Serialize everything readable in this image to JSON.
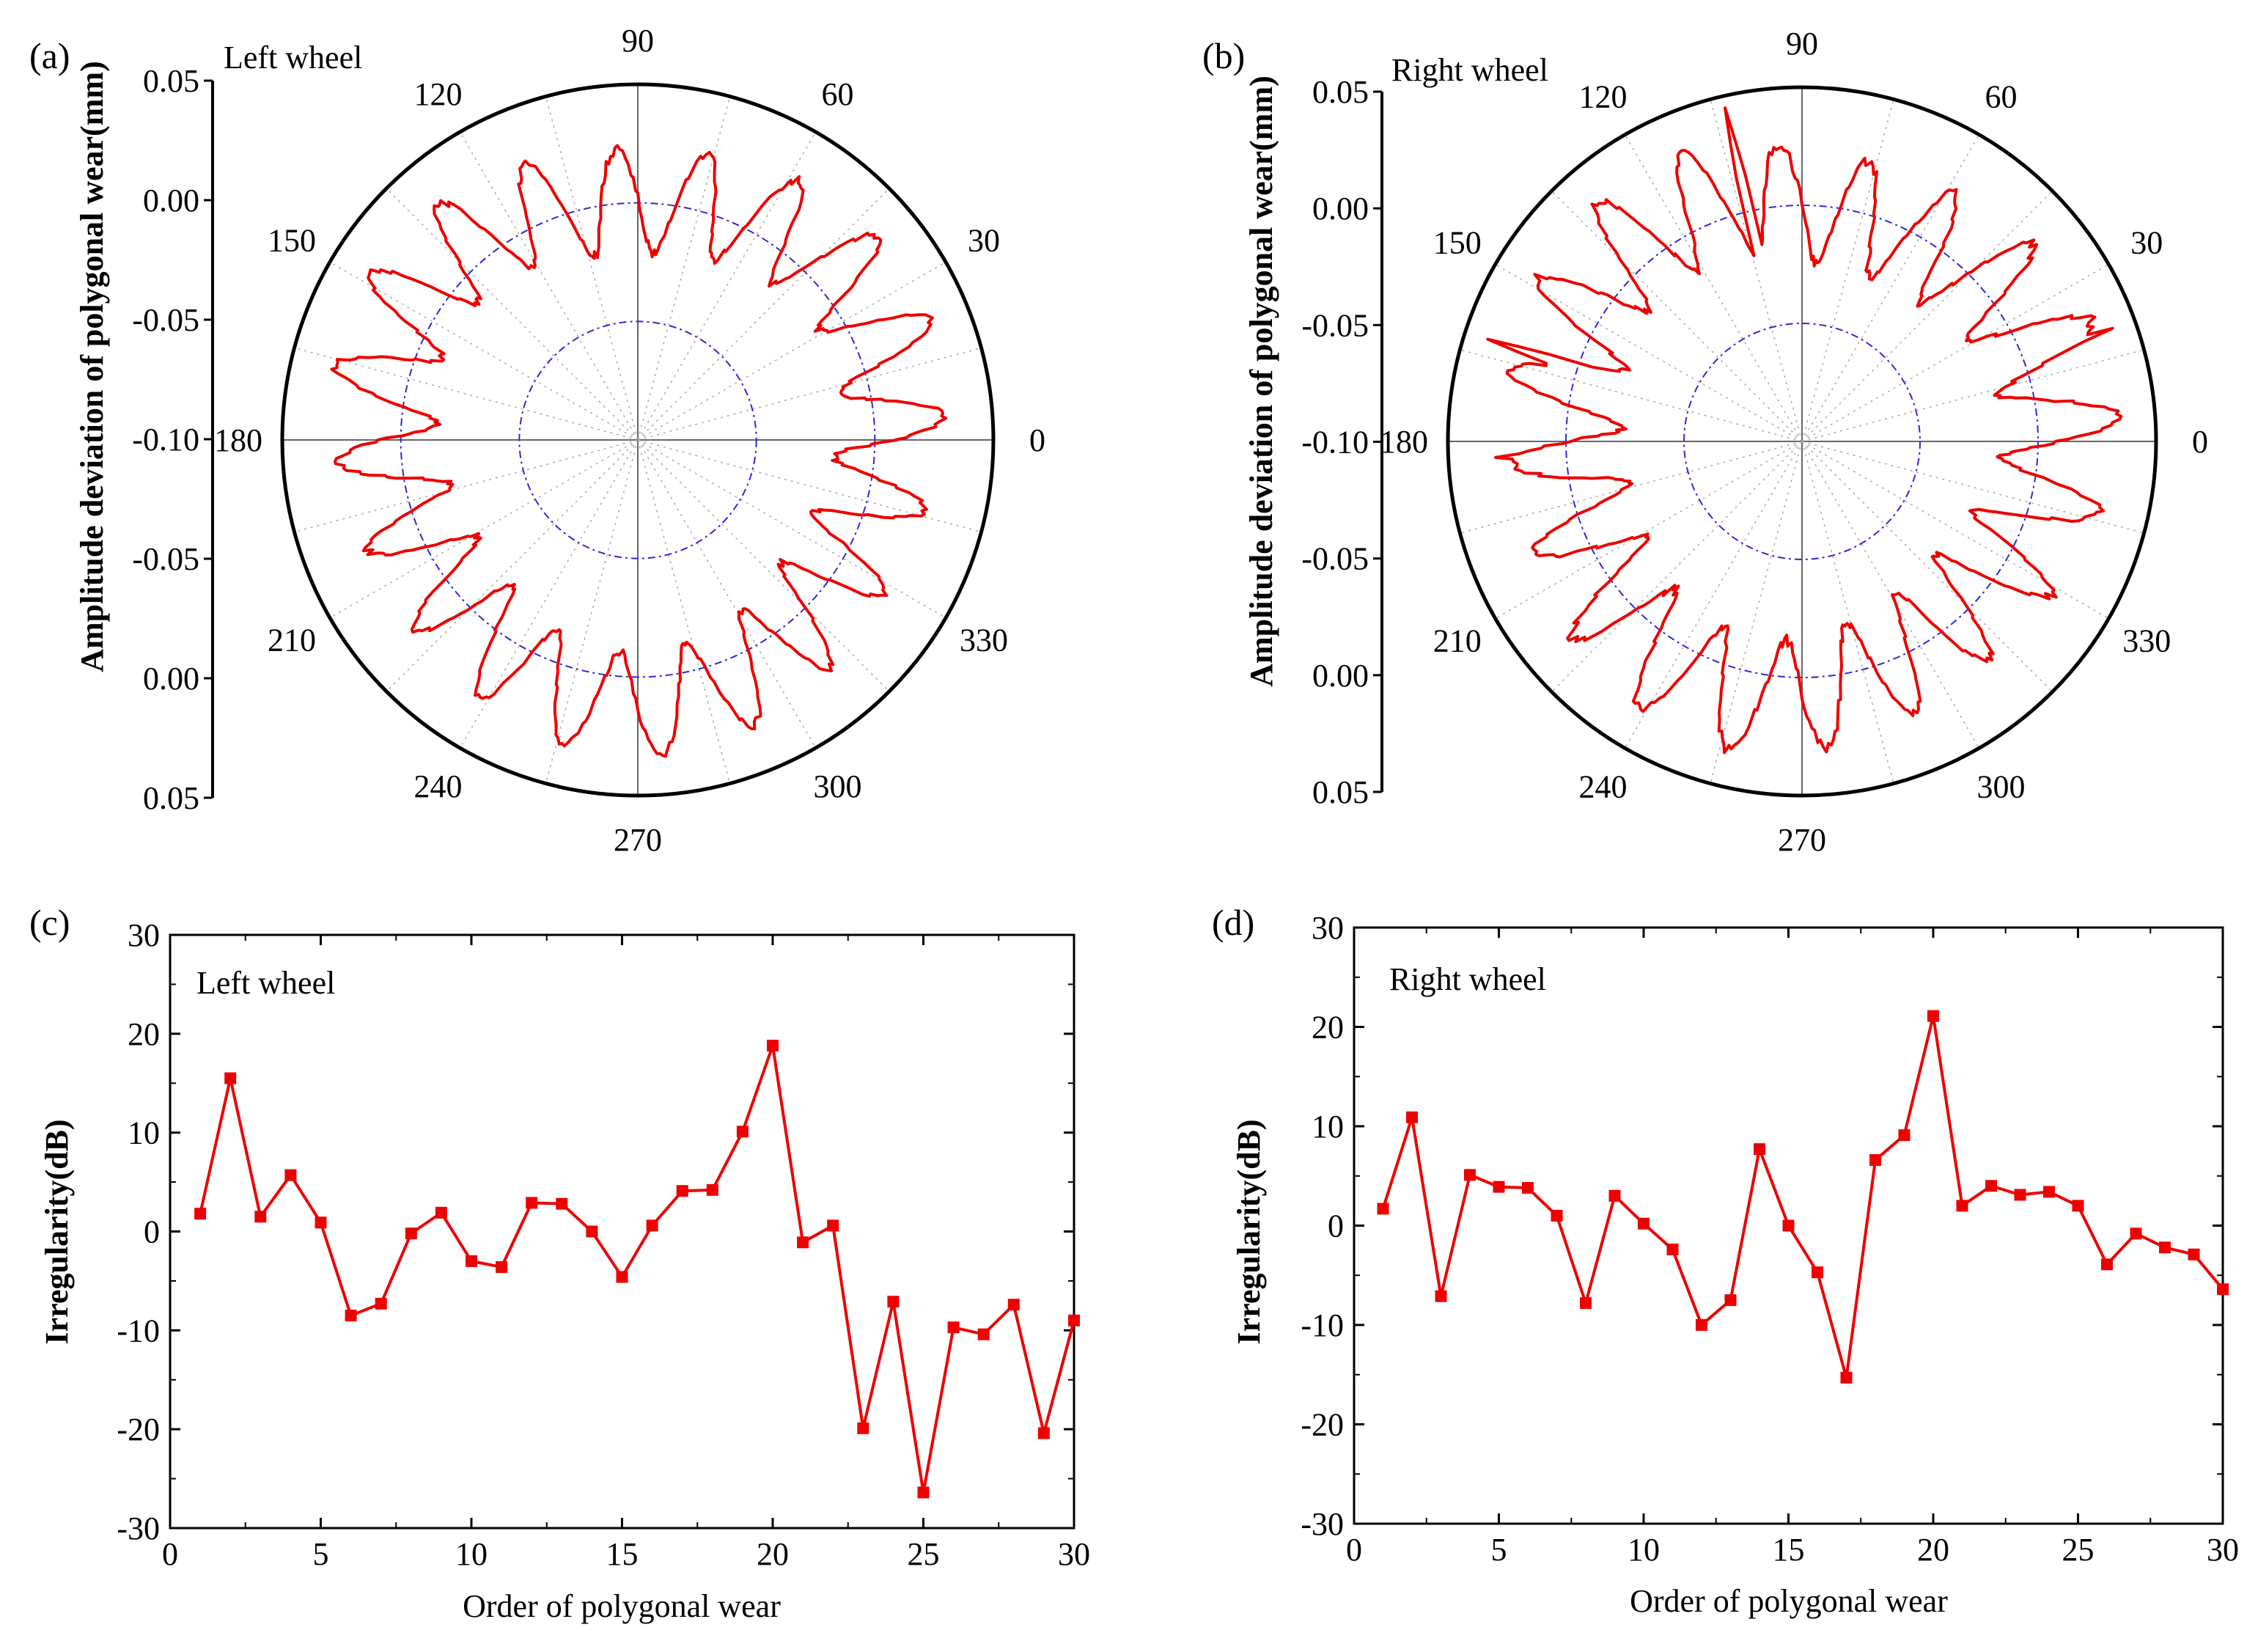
{
  "figure": {
    "panels": [
      "(a)",
      "(b)",
      "(c)",
      "(d)"
    ]
  },
  "colors": {
    "series": "#ee0000",
    "inner_rings": "#2a2ad8",
    "axes": "#000000",
    "spokes": "#aaaaaa"
  },
  "chart_data": [
    {
      "id": "a",
      "type": "polar",
      "panel": "(a)",
      "label": "Left wheel",
      "ylabel": "Amplitude deviation of polygonal wear(mm)",
      "radial_tick_labels": [
        "0.05",
        "0.00",
        "-0.05",
        "-0.10",
        "-0.05",
        "0.00",
        "0.05"
      ],
      "angle_labels": [
        "0",
        "30",
        "60",
        "90",
        "120",
        "150",
        "180",
        "210",
        "240",
        "270",
        "300",
        "330"
      ],
      "radial_range": [
        -0.1,
        0.05
      ],
      "rings": [
        -0.05,
        0.0
      ],
      "order": 20,
      "amplitude": 0.022,
      "offset": 0.006,
      "phase_deg": 5,
      "noise": 0.004
    },
    {
      "id": "b",
      "type": "polar",
      "panel": "(b)",
      "label": "Right wheel",
      "ylabel": "Amplitude deviation of polygonal wear(mm)",
      "radial_tick_labels": [
        "0.05",
        "0.00",
        "-0.05",
        "-0.10",
        "-0.05",
        "0.00",
        "0.05"
      ],
      "angle_labels": [
        "0",
        "30",
        "60",
        "90",
        "120",
        "150",
        "180",
        "210",
        "240",
        "270",
        "300",
        "330"
      ],
      "radial_range": [
        -0.1,
        0.05
      ],
      "rings": [
        -0.05,
        0.0
      ],
      "order": 20,
      "amplitude": 0.024,
      "offset": 0.004,
      "phase_deg": 0,
      "noise": 0.005,
      "spikes": [
        {
          "angle": 20,
          "value": 0.04
        },
        {
          "angle": 103,
          "value": 0.045
        },
        {
          "angle": 162,
          "value": 0.04
        },
        {
          "angle": 183,
          "value": 0.03
        }
      ]
    },
    {
      "id": "c",
      "type": "line",
      "panel": "(c)",
      "label": "Left wheel",
      "xlabel": "Order of polygonal wear",
      "ylabel": "Irregularity(dB)",
      "xlim": [
        0,
        30
      ],
      "ylim": [
        -30,
        30
      ],
      "xticks": [
        "0",
        "5",
        "10",
        "15",
        "20",
        "25",
        "30"
      ],
      "yticks": [
        "-30",
        "-20",
        "-10",
        "0",
        "10",
        "20",
        "30"
      ],
      "x": [
        1,
        2,
        3,
        4,
        5,
        6,
        7,
        8,
        9,
        10,
        11,
        12,
        13,
        14,
        15,
        16,
        17,
        18,
        19,
        20,
        21,
        22,
        23,
        24,
        25,
        26,
        27,
        28,
        29,
        30
      ],
      "y": [
        1.8,
        15.5,
        1.5,
        5.7,
        0.9,
        -8.5,
        -7.3,
        -0.2,
        1.9,
        -3.0,
        -3.6,
        2.9,
        2.8,
        0.0,
        -4.6,
        0.6,
        4.1,
        4.2,
        10.1,
        18.8,
        -1.1,
        0.6,
        -19.9,
        -7.1,
        -26.4,
        -9.7,
        -10.4,
        -7.4,
        -20.4,
        -9.0
      ]
    },
    {
      "id": "d",
      "type": "line",
      "panel": "(d)",
      "label": "Right wheel",
      "xlabel": "Order of polygonal wear",
      "ylabel": "Irregularity(dB)",
      "xlim": [
        0,
        30
      ],
      "ylim": [
        -30,
        30
      ],
      "xticks": [
        "0",
        "5",
        "10",
        "15",
        "20",
        "25",
        "30"
      ],
      "yticks": [
        "-30",
        "-20",
        "-10",
        "0",
        "10",
        "20",
        "30"
      ],
      "x": [
        1,
        2,
        3,
        4,
        5,
        6,
        7,
        8,
        9,
        10,
        11,
        12,
        13,
        14,
        15,
        16,
        17,
        18,
        19,
        20,
        21,
        22,
        23,
        24,
        25,
        26,
        27,
        28,
        29,
        30
      ],
      "y": [
        1.7,
        10.9,
        -7.1,
        5.1,
        3.9,
        3.8,
        1.0,
        -7.8,
        3.0,
        0.2,
        -2.4,
        -10.0,
        -7.5,
        7.7,
        0.0,
        -4.7,
        -15.3,
        6.6,
        9.1,
        21.1,
        2.0,
        4.0,
        3.1,
        3.4,
        2.0,
        -3.9,
        -0.8,
        -2.2,
        -2.9,
        -6.4
      ]
    }
  ]
}
